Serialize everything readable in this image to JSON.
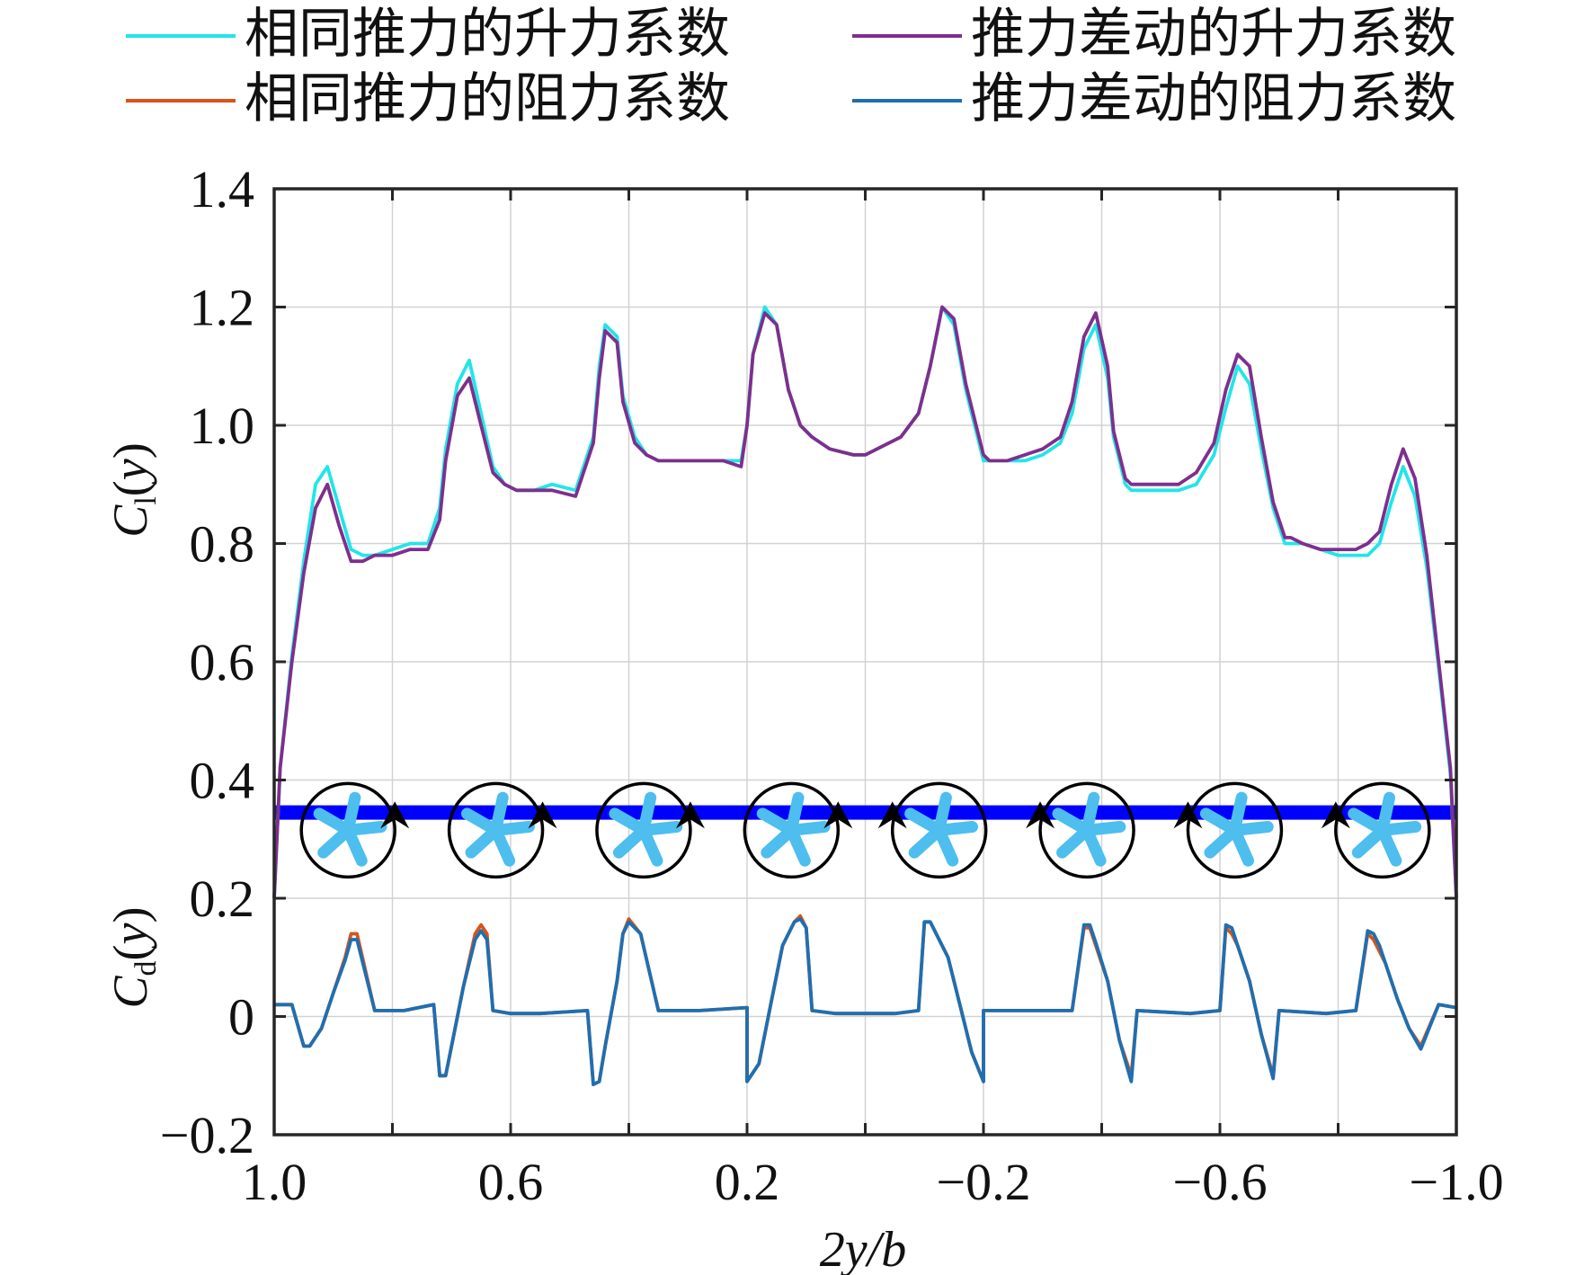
{
  "chart_data": {
    "type": "line",
    "title": "",
    "xlabel": "2y/b",
    "xlim": [
      1.0,
      -1.0
    ],
    "xticks": [
      1.0,
      0.8,
      0.6,
      0.4,
      0.2,
      0.0,
      -0.2,
      -0.4,
      -0.6,
      -0.8,
      -1.0
    ],
    "xtick_labels": [
      "1.0",
      "",
      "0.6",
      "",
      "0.2",
      "",
      "−0.2",
      "",
      "−0.6",
      "",
      "−1.0"
    ],
    "ylim": [
      -0.2,
      1.4
    ],
    "yticks": [
      -0.2,
      0,
      0.2,
      0.4,
      0.6,
      0.8,
      1.0,
      1.2,
      1.4
    ],
    "ytick_labels": [
      "−0.2",
      "0",
      "0.2",
      "0.4",
      "0.6",
      "0.8",
      "1.0",
      "1.2",
      "1.4"
    ],
    "ylabel_lift": "Cl(y)",
    "ylabel_drag": "Cd(y)",
    "grid": true,
    "legend_position": "top",
    "series": [
      {
        "name": "相同推力的升力系数",
        "color": "#22e5e8",
        "x": [
          1.0,
          0.99,
          0.97,
          0.95,
          0.93,
          0.91,
          0.89,
          0.87,
          0.85,
          0.83,
          0.8,
          0.77,
          0.74,
          0.72,
          0.71,
          0.69,
          0.67,
          0.65,
          0.63,
          0.61,
          0.59,
          0.56,
          0.53,
          0.49,
          0.46,
          0.45,
          0.44,
          0.42,
          0.41,
          0.39,
          0.37,
          0.35,
          0.33,
          0.3,
          0.27,
          0.24,
          0.21,
          0.2,
          0.19,
          0.17,
          0.15,
          0.13,
          0.11,
          0.09,
          0.06,
          0.02,
          0.0,
          -0.02,
          -0.06,
          -0.09,
          -0.11,
          -0.13,
          -0.15,
          -0.17,
          -0.19,
          -0.2,
          -0.21,
          -0.24,
          -0.27,
          -0.3,
          -0.33,
          -0.35,
          -0.37,
          -0.39,
          -0.41,
          -0.42,
          -0.44,
          -0.45,
          -0.46,
          -0.49,
          -0.53,
          -0.56,
          -0.59,
          -0.61,
          -0.63,
          -0.65,
          -0.67,
          -0.69,
          -0.71,
          -0.72,
          -0.74,
          -0.77,
          -0.8,
          -0.83,
          -0.85,
          -0.87,
          -0.89,
          -0.91,
          -0.93,
          -0.95,
          -0.97,
          -0.99,
          -1.0
        ],
        "y": [
          0.2,
          0.42,
          0.61,
          0.77,
          0.9,
          0.93,
          0.86,
          0.79,
          0.78,
          0.78,
          0.79,
          0.8,
          0.8,
          0.86,
          0.96,
          1.07,
          1.11,
          1.02,
          0.93,
          0.9,
          0.89,
          0.89,
          0.9,
          0.89,
          0.98,
          1.1,
          1.17,
          1.15,
          1.05,
          0.98,
          0.95,
          0.94,
          0.94,
          0.94,
          0.94,
          0.94,
          0.94,
          1.0,
          1.12,
          1.2,
          1.17,
          1.06,
          1.0,
          0.98,
          0.96,
          0.95,
          0.95,
          0.96,
          0.98,
          1.02,
          1.1,
          1.2,
          1.17,
          1.06,
          0.98,
          0.94,
          0.94,
          0.94,
          0.94,
          0.95,
          0.97,
          1.02,
          1.13,
          1.17,
          1.08,
          0.98,
          0.9,
          0.89,
          0.89,
          0.89,
          0.89,
          0.9,
          0.95,
          1.03,
          1.1,
          1.07,
          0.96,
          0.86,
          0.8,
          0.8,
          0.8,
          0.79,
          0.78,
          0.78,
          0.78,
          0.8,
          0.87,
          0.93,
          0.88,
          0.76,
          0.59,
          0.41,
          0.2
        ]
      },
      {
        "name": "推力差动的升力系数",
        "color": "#7e2f8e",
        "x": [
          1.0,
          0.99,
          0.97,
          0.95,
          0.93,
          0.91,
          0.89,
          0.87,
          0.85,
          0.83,
          0.8,
          0.77,
          0.74,
          0.72,
          0.71,
          0.69,
          0.67,
          0.65,
          0.63,
          0.61,
          0.59,
          0.56,
          0.53,
          0.49,
          0.46,
          0.45,
          0.44,
          0.42,
          0.41,
          0.39,
          0.37,
          0.35,
          0.33,
          0.3,
          0.27,
          0.24,
          0.21,
          0.2,
          0.19,
          0.17,
          0.15,
          0.13,
          0.11,
          0.09,
          0.06,
          0.02,
          0.0,
          -0.02,
          -0.06,
          -0.09,
          -0.11,
          -0.13,
          -0.15,
          -0.17,
          -0.19,
          -0.2,
          -0.21,
          -0.24,
          -0.27,
          -0.3,
          -0.33,
          -0.35,
          -0.37,
          -0.39,
          -0.41,
          -0.42,
          -0.44,
          -0.45,
          -0.46,
          -0.49,
          -0.53,
          -0.56,
          -0.59,
          -0.61,
          -0.63,
          -0.65,
          -0.67,
          -0.69,
          -0.71,
          -0.72,
          -0.74,
          -0.77,
          -0.8,
          -0.83,
          -0.85,
          -0.87,
          -0.89,
          -0.91,
          -0.93,
          -0.95,
          -0.97,
          -0.99,
          -1.0
        ],
        "y": [
          0.2,
          0.42,
          0.6,
          0.75,
          0.86,
          0.9,
          0.83,
          0.77,
          0.77,
          0.78,
          0.78,
          0.79,
          0.79,
          0.84,
          0.94,
          1.05,
          1.08,
          1.0,
          0.92,
          0.9,
          0.89,
          0.89,
          0.89,
          0.88,
          0.97,
          1.08,
          1.16,
          1.14,
          1.04,
          0.97,
          0.95,
          0.94,
          0.94,
          0.94,
          0.94,
          0.94,
          0.93,
          1.0,
          1.12,
          1.19,
          1.17,
          1.06,
          1.0,
          0.98,
          0.96,
          0.95,
          0.95,
          0.96,
          0.98,
          1.02,
          1.1,
          1.2,
          1.18,
          1.07,
          0.99,
          0.95,
          0.94,
          0.94,
          0.95,
          0.96,
          0.98,
          1.04,
          1.15,
          1.19,
          1.1,
          0.99,
          0.91,
          0.9,
          0.9,
          0.9,
          0.9,
          0.92,
          0.97,
          1.06,
          1.12,
          1.1,
          0.98,
          0.87,
          0.81,
          0.81,
          0.8,
          0.79,
          0.79,
          0.79,
          0.8,
          0.82,
          0.9,
          0.96,
          0.91,
          0.78,
          0.6,
          0.42,
          0.2
        ]
      },
      {
        "name": "相同推力的阻力系数",
        "color": "#d95319",
        "x": [
          1.0,
          0.97,
          0.95,
          0.94,
          0.92,
          0.9,
          0.88,
          0.87,
          0.86,
          0.83,
          0.78,
          0.73,
          0.72,
          0.71,
          0.7,
          0.68,
          0.66,
          0.65,
          0.64,
          0.63,
          0.6,
          0.55,
          0.47,
          0.46,
          0.45,
          0.44,
          0.42,
          0.41,
          0.4,
          0.38,
          0.35,
          0.28,
          0.2,
          0.2,
          0.18,
          0.16,
          0.14,
          0.12,
          0.11,
          0.1,
          0.09,
          0.05,
          0.0,
          -0.05,
          -0.09,
          -0.1,
          -0.11,
          -0.12,
          -0.14,
          -0.16,
          -0.18,
          -0.2,
          -0.2,
          -0.28,
          -0.35,
          -0.37,
          -0.38,
          -0.39,
          -0.41,
          -0.43,
          -0.45,
          -0.46,
          -0.55,
          -0.6,
          -0.61,
          -0.62,
          -0.63,
          -0.65,
          -0.67,
          -0.69,
          -0.7,
          -0.78,
          -0.83,
          -0.85,
          -0.86,
          -0.87,
          -0.88,
          -0.9,
          -0.92,
          -0.94,
          -0.97,
          -1.0
        ],
        "y": [
          0.02,
          0.02,
          -0.05,
          -0.05,
          -0.02,
          0.04,
          0.1,
          0.14,
          0.14,
          0.01,
          0.01,
          0.02,
          -0.1,
          -0.1,
          -0.05,
          0.05,
          0.14,
          0.155,
          0.14,
          0.01,
          0.005,
          0.005,
          0.01,
          -0.115,
          -0.11,
          -0.05,
          0.06,
          0.14,
          0.165,
          0.14,
          0.01,
          0.01,
          0.015,
          -0.11,
          -0.08,
          0.02,
          0.12,
          0.16,
          0.17,
          0.15,
          0.01,
          0.005,
          0.005,
          0.005,
          0.01,
          0.16,
          0.16,
          0.14,
          0.1,
          0.02,
          -0.06,
          -0.11,
          0.01,
          0.01,
          0.01,
          0.15,
          0.15,
          0.12,
          0.06,
          -0.04,
          -0.1,
          0.01,
          0.005,
          0.01,
          0.15,
          0.14,
          0.12,
          0.06,
          -0.03,
          -0.1,
          0.01,
          0.005,
          0.01,
          0.14,
          0.13,
          0.11,
          0.09,
          0.03,
          -0.02,
          -0.05,
          0.02,
          0.015
        ]
      },
      {
        "name": "推力差动的阻力系数",
        "color": "#1f6fb0",
        "x": [
          1.0,
          0.97,
          0.95,
          0.94,
          0.92,
          0.9,
          0.88,
          0.87,
          0.86,
          0.83,
          0.78,
          0.73,
          0.72,
          0.71,
          0.7,
          0.68,
          0.66,
          0.65,
          0.64,
          0.63,
          0.6,
          0.55,
          0.47,
          0.46,
          0.45,
          0.44,
          0.42,
          0.41,
          0.4,
          0.38,
          0.35,
          0.28,
          0.2,
          0.2,
          0.18,
          0.16,
          0.14,
          0.12,
          0.11,
          0.1,
          0.09,
          0.05,
          0.0,
          -0.05,
          -0.09,
          -0.1,
          -0.11,
          -0.12,
          -0.14,
          -0.16,
          -0.18,
          -0.2,
          -0.2,
          -0.28,
          -0.35,
          -0.37,
          -0.38,
          -0.39,
          -0.41,
          -0.43,
          -0.45,
          -0.46,
          -0.55,
          -0.6,
          -0.61,
          -0.62,
          -0.63,
          -0.65,
          -0.67,
          -0.69,
          -0.7,
          -0.78,
          -0.83,
          -0.85,
          -0.86,
          -0.87,
          -0.88,
          -0.9,
          -0.92,
          -0.94,
          -0.97,
          -1.0
        ],
        "y": [
          0.02,
          0.02,
          -0.05,
          -0.05,
          -0.02,
          0.04,
          0.095,
          0.13,
          0.13,
          0.01,
          0.01,
          0.02,
          -0.1,
          -0.1,
          -0.05,
          0.05,
          0.13,
          0.145,
          0.13,
          0.01,
          0.005,
          0.005,
          0.01,
          -0.115,
          -0.11,
          -0.05,
          0.06,
          0.14,
          0.16,
          0.14,
          0.01,
          0.01,
          0.015,
          -0.11,
          -0.08,
          0.02,
          0.12,
          0.16,
          0.165,
          0.15,
          0.01,
          0.005,
          0.005,
          0.005,
          0.01,
          0.16,
          0.16,
          0.14,
          0.1,
          0.02,
          -0.06,
          -0.11,
          0.01,
          0.01,
          0.01,
          0.155,
          0.155,
          0.125,
          0.06,
          -0.04,
          -0.11,
          0.01,
          0.005,
          0.01,
          0.155,
          0.15,
          0.12,
          0.06,
          -0.03,
          -0.105,
          0.01,
          0.005,
          0.01,
          0.145,
          0.14,
          0.12,
          0.09,
          0.03,
          -0.02,
          -0.055,
          0.02,
          0.015
        ]
      }
    ],
    "wing_band": {
      "color": "#0000ff",
      "x_from": 1.0,
      "x_to": -1.0,
      "y_center": 0.345
    },
    "propellers": {
      "x": [
        0.875,
        0.625,
        0.375,
        0.125,
        -0.125,
        -0.375,
        -0.625,
        -0.875
      ],
      "y": 0.315,
      "rotation_arrow": [
        "up",
        "up",
        "up",
        "up",
        "up",
        "up",
        "up",
        "up"
      ],
      "arrow_side": [
        "right",
        "right",
        "right",
        "right",
        "left",
        "left",
        "left",
        "left"
      ],
      "blade_color": "#4dbeee",
      "ring_color": "#000000"
    }
  }
}
